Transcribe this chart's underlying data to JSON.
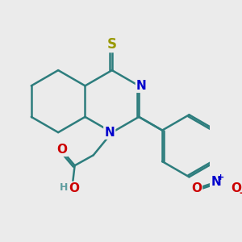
{
  "bg_color": "#ebebeb",
  "bond_color": "#2d7d7d",
  "bond_width": 1.8,
  "atom_colors": {
    "S": "#999900",
    "N": "#0000cc",
    "O": "#cc0000",
    "H": "#5f9ea0",
    "C": "#2d7d7d"
  },
  "font_size": 11
}
